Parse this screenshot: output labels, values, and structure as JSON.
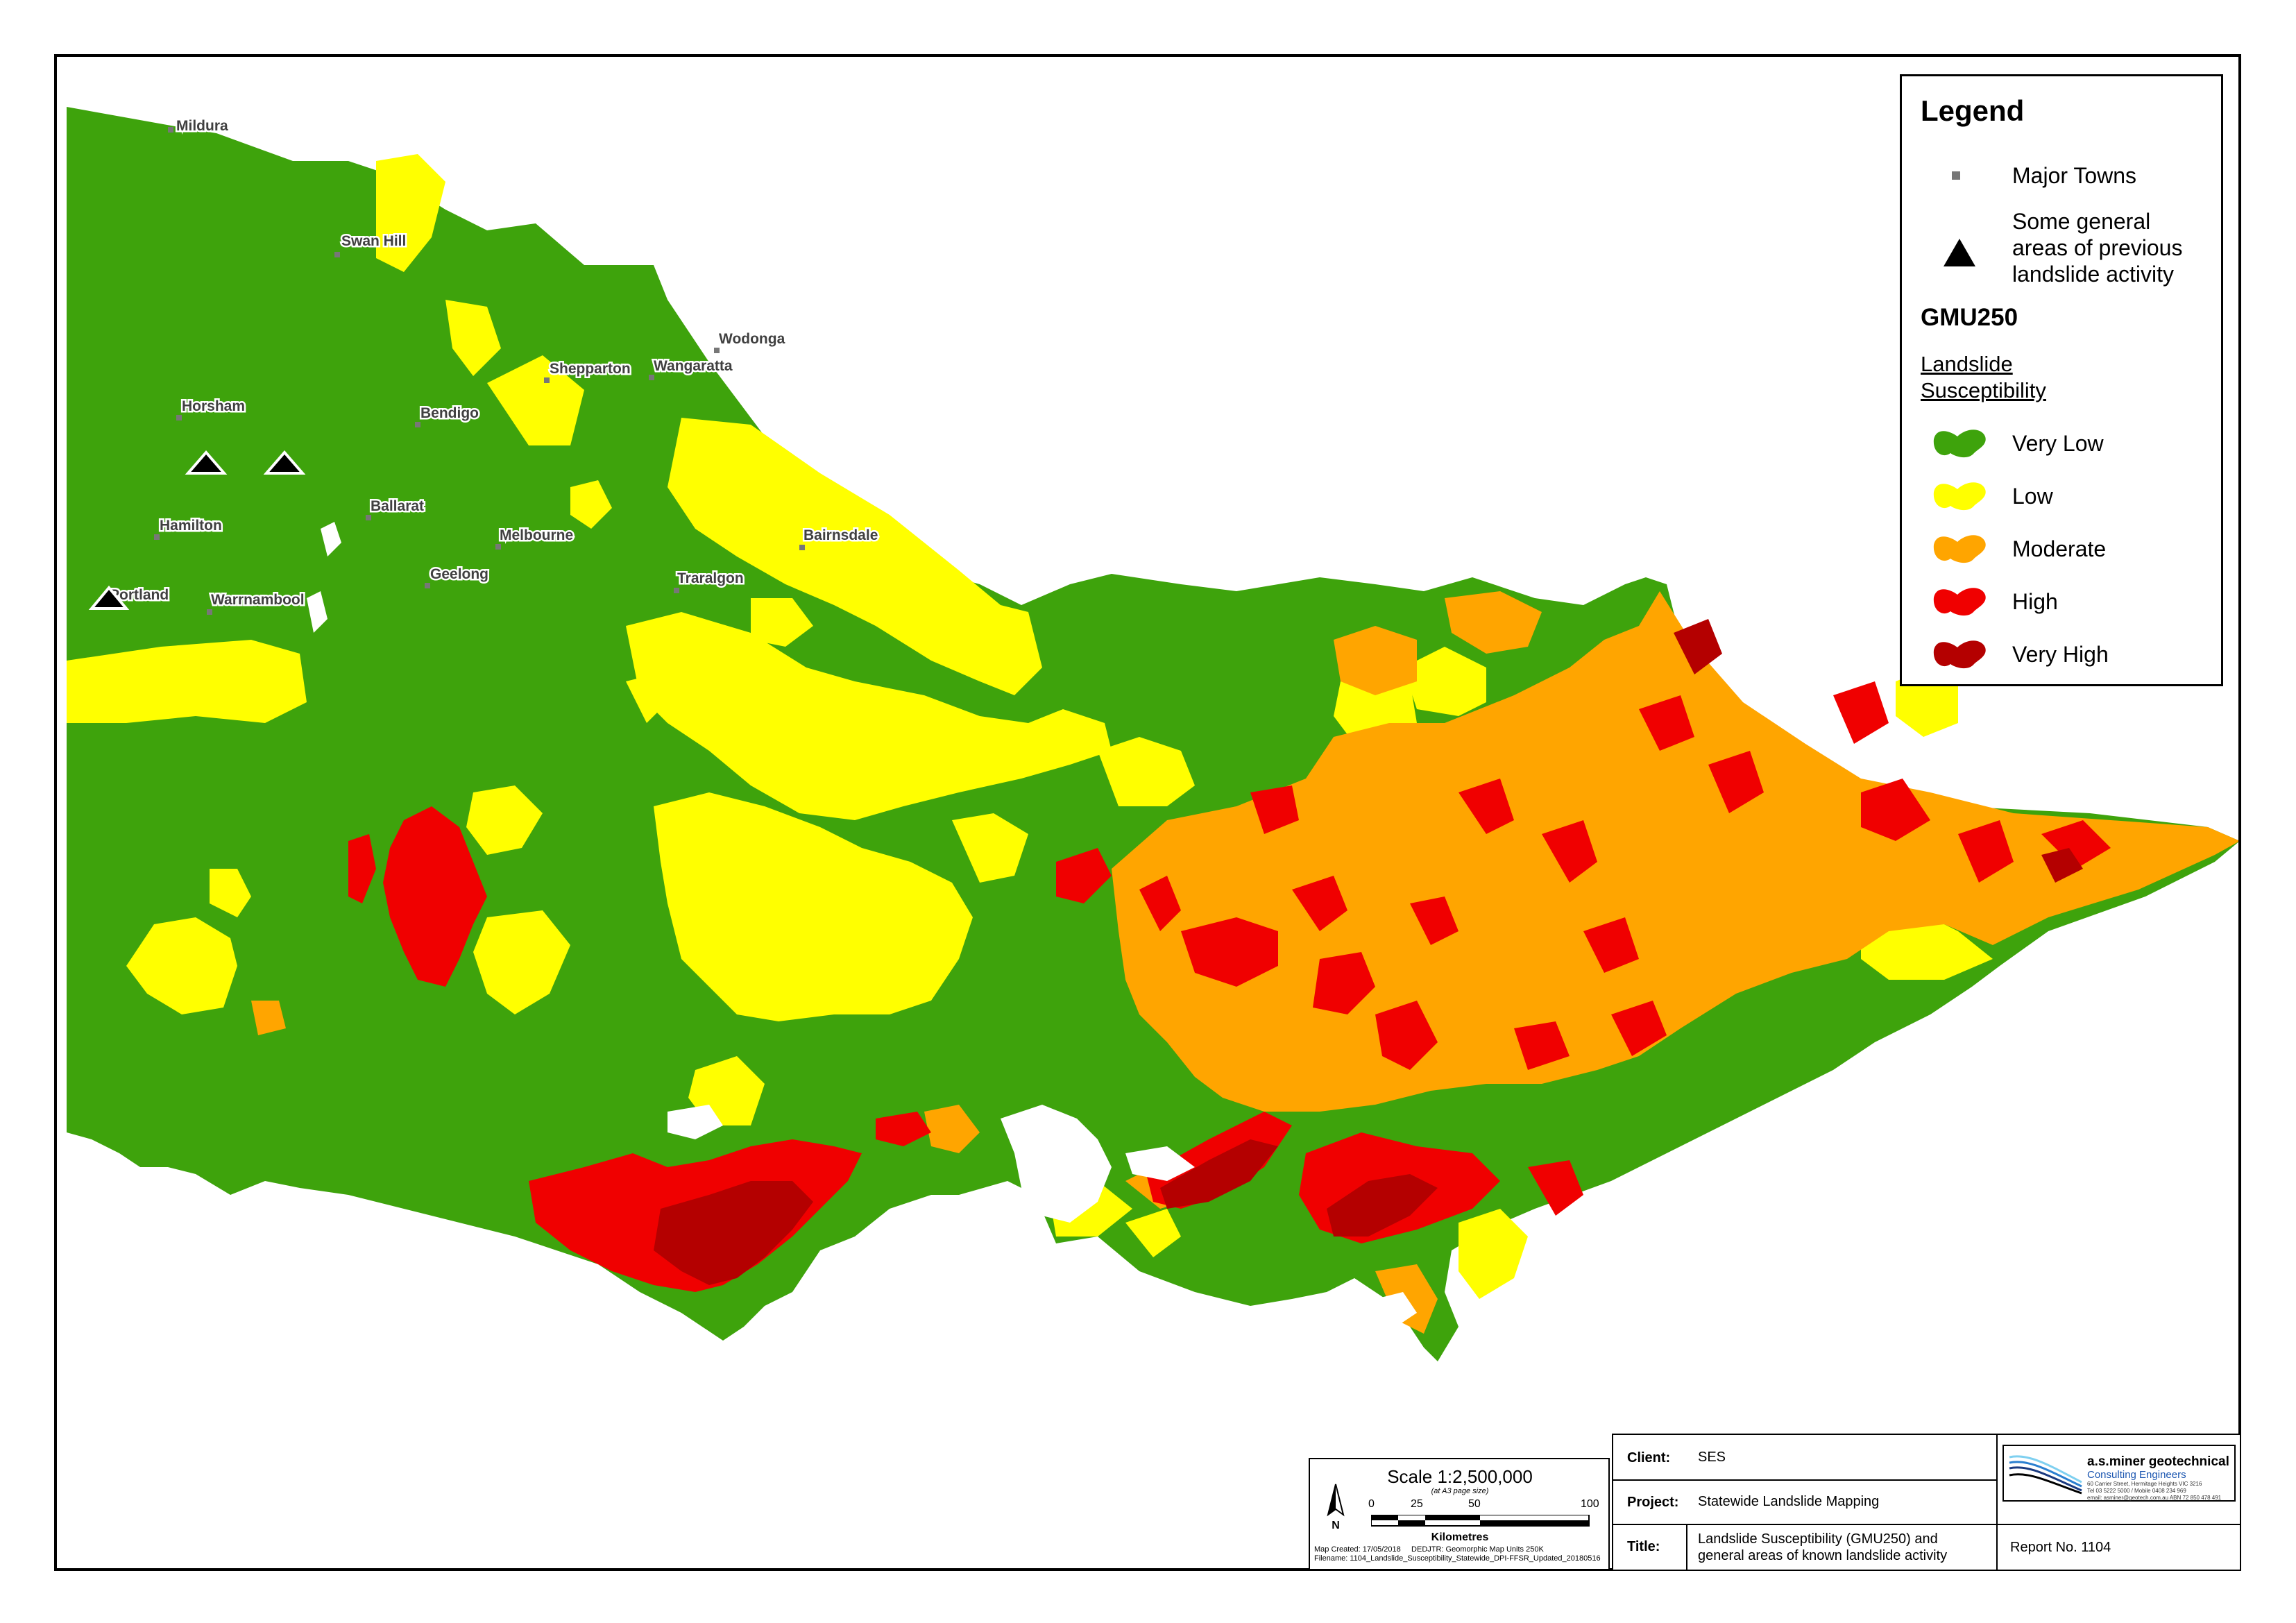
{
  "towns": [
    {
      "name": "Mildura"
    },
    {
      "name": "Swan Hill"
    },
    {
      "name": "Horsham"
    },
    {
      "name": "Bendigo"
    },
    {
      "name": "Shepparton"
    },
    {
      "name": "Wangaratta"
    },
    {
      "name": "Wodonga"
    },
    {
      "name": "Ballarat"
    },
    {
      "name": "Hamilton"
    },
    {
      "name": "Melbourne"
    },
    {
      "name": "Geelong"
    },
    {
      "name": "Portland"
    },
    {
      "name": "Warrnambool"
    },
    {
      "name": "Traralgon"
    },
    {
      "name": "Bairnsdale"
    }
  ],
  "colors": {
    "very_low": "#3ea30c",
    "low": "#ffff00",
    "moderate": "#ffa500",
    "high": "#f00000",
    "very_high": "#b40000",
    "town_marker": "#777777",
    "triangle": "#000000"
  },
  "legend": {
    "title": "Legend",
    "major_towns": "Major Towns",
    "landslide_line1": "Some general",
    "landslide_line2": "areas of previous",
    "landslide_line3": "landslide activity",
    "gmu_title": "GMU250",
    "susc_line1": "Landslide",
    "susc_line2": "Susceptibility",
    "classes": [
      "Very Low",
      "Low",
      "Moderate",
      "High",
      "Very High"
    ]
  },
  "scale": {
    "title": "Scale 1:2,500,000",
    "subtitle": "(at A3 page size)",
    "ticks": [
      "0",
      "25",
      "50",
      "100"
    ],
    "units": "Kilometres",
    "north": "N",
    "created": "Map Created: 17/05/2018",
    "source": "DEDJTR: Geomorphic Map Units 250K",
    "filename": "Filename: 1104_Landslide_Susceptibility_Statewide_DPI-FFSR_Updated_20180516"
  },
  "titleblock": {
    "client_key": "Client:",
    "client_val": "SES",
    "project_key": "Project:",
    "project_val": "Statewide Landslide Mapping",
    "title_key": "Title:",
    "title_line1": "Landslide Susceptibility (GMU250) and",
    "title_line2": "general areas of known landslide activity",
    "report": "Report No. 1104"
  },
  "logo": {
    "name": "a.s.miner geotechnical",
    "sub": "Consulting Engineers",
    "addr1": "60 Carrier Street, Hermitage Heights VIC 3216",
    "addr2": "Tel 03 5222 5000 / Mobile 0408 234 969",
    "addr3": "email: asminer@geotech.com.au  ABN 72 850 478 491"
  }
}
